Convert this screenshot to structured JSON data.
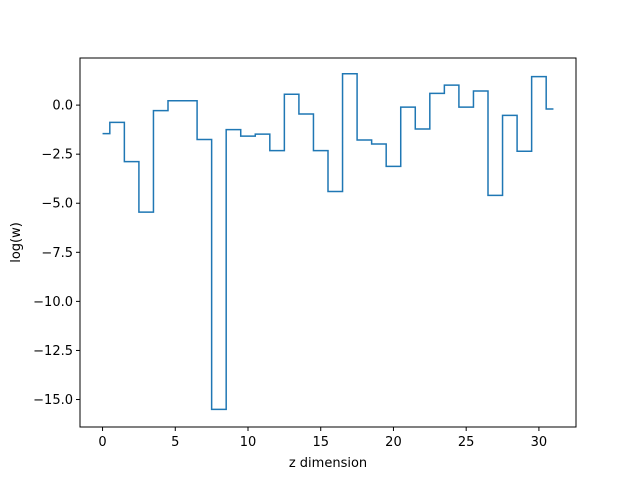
{
  "chart_data": {
    "type": "line",
    "drawstyle": "steps-mid",
    "title": "",
    "xlabel": "z dimension",
    "ylabel": "log(w)",
    "xlim": [
      -1.55,
      32.55
    ],
    "ylim": [
      -16.4,
      2.4
    ],
    "xticks": [
      0,
      5,
      10,
      15,
      20,
      25,
      30
    ],
    "xtick_labels": [
      "0",
      "5",
      "10",
      "15",
      "20",
      "25",
      "30"
    ],
    "yticks": [
      -15.0,
      -12.5,
      -10.0,
      -7.5,
      -5.0,
      -2.5,
      0.0
    ],
    "ytick_labels": [
      "−15.0",
      "−12.5",
      "−10.0",
      "−7.5",
      "−5.0",
      "−2.5",
      "0.0"
    ],
    "grid": false,
    "line_color": "#1f77b4",
    "series": [
      {
        "x": [
          0,
          1,
          2,
          3,
          4,
          5,
          6,
          7,
          8,
          9,
          10,
          11,
          12,
          13,
          14,
          15,
          16,
          17,
          18,
          19,
          20,
          21,
          22,
          23,
          24,
          25,
          26,
          27,
          28,
          29,
          30,
          31
        ],
        "values": [
          -1.45,
          -0.88,
          -2.88,
          -5.45,
          -0.28,
          0.22,
          0.22,
          -1.75,
          -15.5,
          -1.25,
          -1.58,
          -1.48,
          -2.32,
          0.55,
          -0.45,
          -2.32,
          -4.4,
          1.6,
          -1.78,
          -1.98,
          -3.12,
          -0.1,
          -1.22,
          0.6,
          1.02,
          -0.1,
          0.72,
          -4.6,
          -0.52,
          -2.35,
          1.45,
          -0.2
        ]
      }
    ]
  }
}
